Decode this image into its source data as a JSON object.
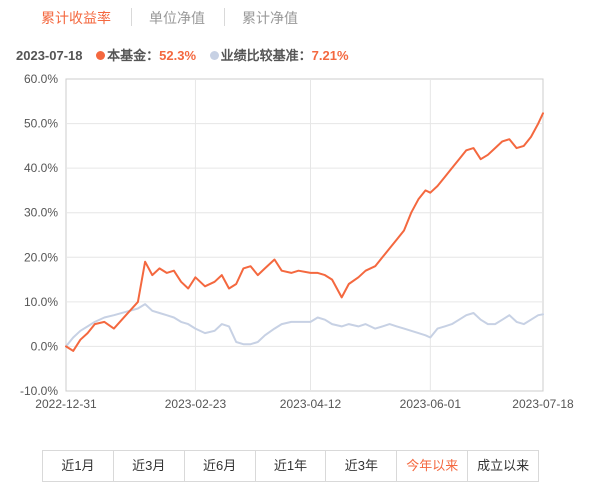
{
  "tabs": [
    {
      "label": "累计收益率",
      "active": true
    },
    {
      "label": "单位净值",
      "active": false
    },
    {
      "label": "累计净值",
      "active": false
    }
  ],
  "legend": {
    "date": "2023-07-18",
    "fund_name": "本基金：",
    "fund_value": "52.3%",
    "fund_color": "#f4683f",
    "benchmark_name": "业绩比较基准：",
    "benchmark_value": "7.21%",
    "benchmark_color": "#c7d1e4"
  },
  "ranges": [
    {
      "label": "近1月",
      "active": false
    },
    {
      "label": "近3月",
      "active": false
    },
    {
      "label": "近6月",
      "active": false
    },
    {
      "label": "近1年",
      "active": false
    },
    {
      "label": "近3年",
      "active": false
    },
    {
      "label": "今年以来",
      "active": true
    },
    {
      "label": "成立以来",
      "active": false
    }
  ],
  "chart_data": {
    "type": "line",
    "x_ticks": [
      "2022-12-31",
      "2023-02-23",
      "2023-04-12",
      "2023-06-01",
      "2023-07-18"
    ],
    "y_ticks": [
      "60.0%",
      "50.0%",
      "40.0%",
      "30.0%",
      "20.0%",
      "10.0%",
      "0.0%",
      "-10.0%"
    ],
    "ylim": [
      -10,
      60
    ],
    "grid": true,
    "series": [
      {
        "name": "本基金",
        "color": "#f4683f",
        "x": [
          "2022-12-31",
          "2023-01-03",
          "2023-01-06",
          "2023-01-09",
          "2023-01-12",
          "2023-01-16",
          "2023-01-20",
          "2023-01-30",
          "2023-02-02",
          "2023-02-05",
          "2023-02-08",
          "2023-02-11",
          "2023-02-14",
          "2023-02-17",
          "2023-02-20",
          "2023-02-23",
          "2023-02-27",
          "2023-03-03",
          "2023-03-06",
          "2023-03-09",
          "2023-03-12",
          "2023-03-15",
          "2023-03-18",
          "2023-03-21",
          "2023-03-24",
          "2023-03-28",
          "2023-03-31",
          "2023-04-04",
          "2023-04-07",
          "2023-04-12",
          "2023-04-15",
          "2023-04-18",
          "2023-04-21",
          "2023-04-25",
          "2023-04-28",
          "2023-05-02",
          "2023-05-05",
          "2023-05-09",
          "2023-05-12",
          "2023-05-15",
          "2023-05-18",
          "2023-05-21",
          "2023-05-24",
          "2023-05-27",
          "2023-05-30",
          "2023-06-01",
          "2023-06-04",
          "2023-06-07",
          "2023-06-10",
          "2023-06-13",
          "2023-06-16",
          "2023-06-19",
          "2023-06-22",
          "2023-06-25",
          "2023-06-28",
          "2023-07-01",
          "2023-07-04",
          "2023-07-07",
          "2023-07-10",
          "2023-07-13",
          "2023-07-16",
          "2023-07-18"
        ],
        "values": [
          0.0,
          -1.0,
          1.5,
          3.0,
          5.0,
          5.5,
          4.0,
          10.0,
          19.0,
          16.0,
          17.5,
          16.5,
          17.0,
          14.5,
          13.0,
          15.5,
          13.5,
          14.5,
          16.0,
          13.0,
          14.0,
          17.5,
          18.0,
          16.0,
          17.5,
          19.5,
          17.0,
          16.5,
          17.0,
          16.5,
          16.5,
          16.0,
          15.0,
          11.0,
          14.0,
          15.5,
          17.0,
          18.0,
          20.0,
          22.0,
          24.0,
          26.0,
          30.0,
          33.0,
          35.0,
          34.5,
          36.0,
          38.0,
          40.0,
          42.0,
          44.0,
          44.5,
          42.0,
          43.0,
          44.5,
          46.0,
          46.5,
          44.5,
          45.0,
          47.0,
          50.0,
          52.3
        ]
      },
      {
        "name": "业绩比较基准",
        "color": "#c7d1e4",
        "x": [
          "2022-12-31",
          "2023-01-03",
          "2023-01-06",
          "2023-01-09",
          "2023-01-12",
          "2023-01-16",
          "2023-01-20",
          "2023-01-30",
          "2023-02-02",
          "2023-02-05",
          "2023-02-08",
          "2023-02-11",
          "2023-02-14",
          "2023-02-17",
          "2023-02-20",
          "2023-02-23",
          "2023-02-27",
          "2023-03-03",
          "2023-03-06",
          "2023-03-09",
          "2023-03-12",
          "2023-03-15",
          "2023-03-18",
          "2023-03-21",
          "2023-03-24",
          "2023-03-28",
          "2023-03-31",
          "2023-04-04",
          "2023-04-07",
          "2023-04-12",
          "2023-04-15",
          "2023-04-18",
          "2023-04-21",
          "2023-04-25",
          "2023-04-28",
          "2023-05-02",
          "2023-05-05",
          "2023-05-09",
          "2023-05-12",
          "2023-05-15",
          "2023-05-18",
          "2023-05-21",
          "2023-05-24",
          "2023-05-27",
          "2023-05-30",
          "2023-06-01",
          "2023-06-04",
          "2023-06-07",
          "2023-06-10",
          "2023-06-13",
          "2023-06-16",
          "2023-06-19",
          "2023-06-22",
          "2023-06-25",
          "2023-06-28",
          "2023-07-01",
          "2023-07-04",
          "2023-07-07",
          "2023-07-10",
          "2023-07-13",
          "2023-07-16",
          "2023-07-18"
        ],
        "values": [
          0.0,
          2.0,
          3.5,
          4.5,
          5.5,
          6.5,
          7.0,
          8.5,
          9.5,
          8.0,
          7.5,
          7.0,
          6.5,
          5.5,
          5.0,
          4.0,
          3.0,
          3.5,
          5.0,
          4.5,
          1.0,
          0.5,
          0.5,
          1.0,
          2.5,
          4.0,
          5.0,
          5.5,
          5.5,
          5.5,
          6.5,
          6.0,
          5.0,
          4.5,
          5.0,
          4.5,
          5.0,
          4.0,
          4.5,
          5.0,
          4.5,
          4.0,
          3.5,
          3.0,
          2.5,
          2.0,
          4.0,
          4.5,
          5.0,
          6.0,
          7.0,
          7.5,
          6.0,
          5.0,
          5.0,
          6.0,
          7.0,
          5.5,
          5.0,
          6.0,
          7.0,
          7.21
        ]
      }
    ]
  }
}
